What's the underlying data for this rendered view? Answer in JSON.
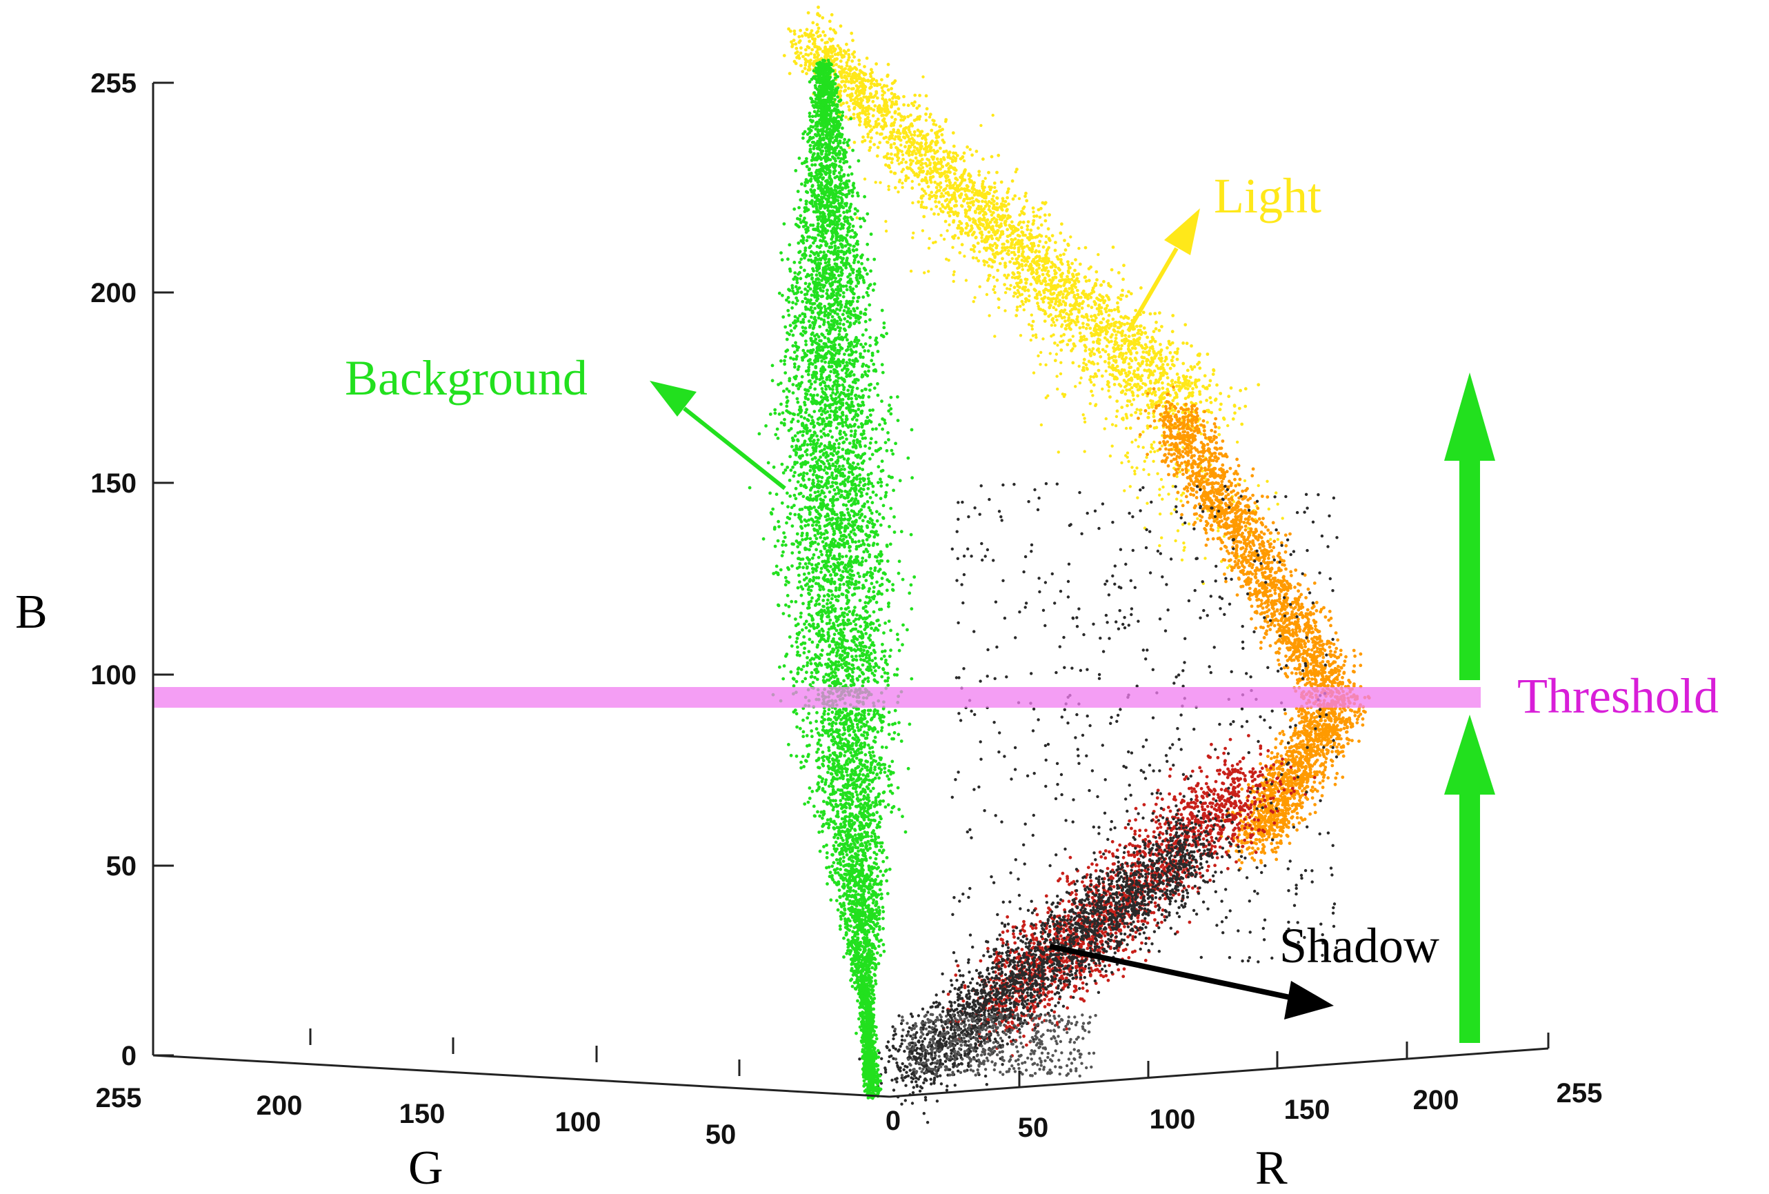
{
  "chart_data": {
    "type": "scatter",
    "projection": "3d",
    "title": "",
    "axes": {
      "B": {
        "label": "B",
        "range": [
          0,
          255
        ],
        "ticks": [
          "0",
          "50",
          "100",
          "150",
          "200",
          "255"
        ]
      },
      "G": {
        "label": "G",
        "range": [
          0,
          255
        ],
        "ticks": [
          "0",
          "50",
          "100",
          "150",
          "200",
          "255"
        ]
      },
      "R": {
        "label": "R",
        "range": [
          0,
          255
        ],
        "ticks": [
          "0",
          "50",
          "100",
          "150",
          "200",
          "255"
        ]
      }
    },
    "grid": false,
    "threshold": {
      "label": "Threshold",
      "B": 95,
      "color": "#f07ef0"
    },
    "clusters": [
      {
        "label": "Background",
        "color": "#22e01e",
        "R": [
          0,
          30
        ],
        "G": [
          0,
          60
        ],
        "B": [
          0,
          255
        ]
      },
      {
        "label": "Light",
        "color": "#ffe81a",
        "R": [
          20,
          160
        ],
        "G": [
          0,
          40
        ],
        "B": [
          150,
          255
        ]
      },
      {
        "label": "",
        "color": "#ff9a00",
        "R": [
          150,
          220
        ],
        "G": [
          0,
          30
        ],
        "B": [
          60,
          170
        ]
      },
      {
        "label": "",
        "color": "#c8201a",
        "R": [
          60,
          190
        ],
        "G": [
          0,
          20
        ],
        "B": [
          5,
          80
        ]
      },
      {
        "label": "Shadow",
        "color": "#2a2a2a",
        "R": [
          0,
          120
        ],
        "G": [
          0,
          20
        ],
        "B": [
          0,
          60
        ]
      }
    ],
    "annotations": {
      "background": "Background",
      "light": "Light",
      "shadow": "Shadow",
      "threshold": "Threshold"
    },
    "annotation_colors": {
      "background": "#22e01e",
      "light": "#ffe81a",
      "shadow": "#000000",
      "threshold": "#d81ed8",
      "up_arrow": "#22e01e"
    }
  }
}
